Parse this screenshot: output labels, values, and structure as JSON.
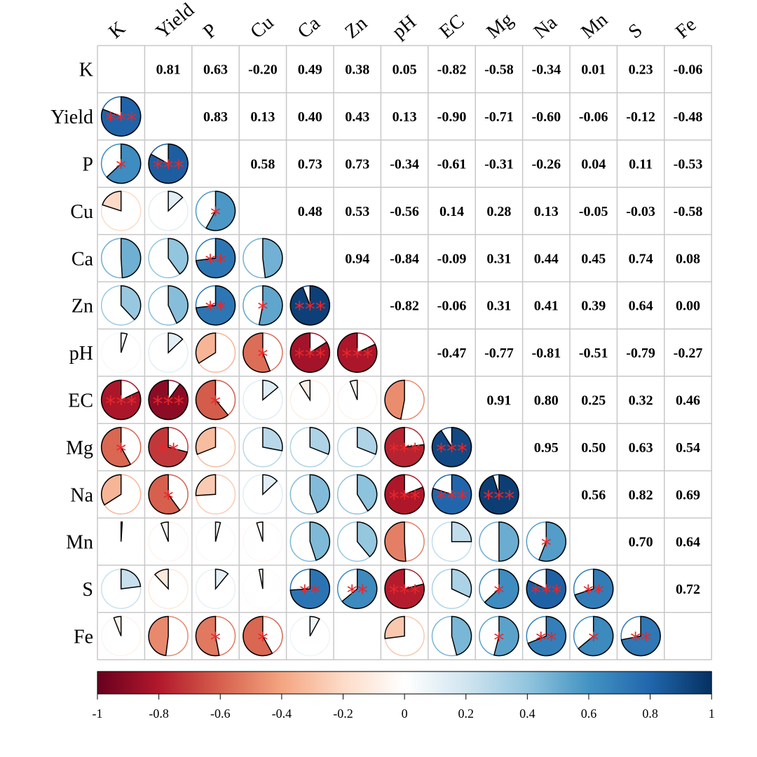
{
  "chart_data": {
    "type": "heatmap",
    "title": "",
    "variables": [
      "K",
      "Yield",
      "P",
      "Cu",
      "Ca",
      "Zn",
      "pH",
      "EC",
      "Mg",
      "Na",
      "Mn",
      "S",
      "Fe"
    ],
    "correlation_labels": [
      [
        "",
        "0.81",
        "0.63",
        "-0.20",
        "0.49",
        "0.38",
        "0.05",
        "-0.82",
        "-0.58",
        "-0.34",
        "0.01",
        "0.23",
        "-0.06"
      ],
      [
        "",
        "",
        "0.83",
        "0.13",
        "0.40",
        "0.43",
        "0.13",
        "-0.90",
        "-0.71",
        "-0.60",
        "-0.06",
        "-0.12",
        "-0.48"
      ],
      [
        "",
        "",
        "",
        "0.58",
        "0.73",
        "0.73",
        "-0.34",
        "-0.61",
        "-0.31",
        "-0.26",
        "0.04",
        "0.11",
        "-0.53"
      ],
      [
        "",
        "",
        "",
        "",
        "0.48",
        "0.53",
        "-0.56",
        "0.14",
        "0.28",
        "0.13",
        "-0.05",
        "-0.03",
        "-0.58"
      ],
      [
        "",
        "",
        "",
        "",
        "",
        "0.94",
        "-0.84",
        "-0.09",
        "0.31",
        "0.44",
        "0.45",
        "0.74",
        "0.08"
      ],
      [
        "",
        "",
        "",
        "",
        "",
        "",
        "-0.82",
        "-0.06",
        "0.31",
        "0.41",
        "0.39",
        "0.64",
        "0.00"
      ],
      [
        "",
        "",
        "",
        "",
        "",
        "",
        "",
        "-0.47",
        "-0.77",
        "-0.81",
        "-0.51",
        "-0.79",
        "-0.27"
      ],
      [
        "",
        "",
        "",
        "",
        "",
        "",
        "",
        "",
        "0.91",
        "0.80",
        "0.25",
        "0.32",
        "0.46"
      ],
      [
        "",
        "",
        "",
        "",
        "",
        "",
        "",
        "",
        "",
        "0.95",
        "0.50",
        "0.63",
        "0.54"
      ],
      [
        "",
        "",
        "",
        "",
        "",
        "",
        "",
        "",
        "",
        "",
        "0.56",
        "0.82",
        "0.69"
      ],
      [
        "",
        "",
        "",
        "",
        "",
        "",
        "",
        "",
        "",
        "",
        "",
        "0.70",
        "0.64"
      ],
      [
        "",
        "",
        "",
        "",
        "",
        "",
        "",
        "",
        "",
        "",
        "",
        "",
        "0.72"
      ],
      [
        "",
        "",
        "",
        "",
        "",
        "",
        "",
        "",
        "",
        "",
        "",
        "",
        ""
      ]
    ],
    "significance": [
      [
        "",
        "***",
        "*",
        "",
        "",
        "",
        "",
        "***",
        "*",
        "",
        "",
        "",
        ""
      ],
      [
        "***",
        "",
        "***",
        "",
        "",
        "",
        "",
        "***",
        "**",
        "*",
        "",
        "",
        ""
      ],
      [
        "*",
        "***",
        "",
        "*",
        "**",
        "**",
        "",
        "*",
        "",
        "",
        "",
        "",
        "*"
      ],
      [
        "",
        "",
        "*",
        "",
        "",
        "*",
        "*",
        "",
        "",
        "",
        "",
        "",
        "*"
      ],
      [
        "",
        "",
        "**",
        "",
        "",
        "***",
        "***",
        "",
        "",
        "",
        "",
        "**",
        ""
      ],
      [
        "",
        "",
        "**",
        "*",
        "***",
        "",
        "***",
        "",
        "",
        "",
        "",
        "**",
        ""
      ],
      [
        "",
        "",
        "",
        "*",
        "***",
        "***",
        "",
        "",
        "***",
        "***",
        "",
        "***",
        ""
      ],
      [
        "***",
        "***",
        "*",
        "",
        "",
        "",
        "",
        "",
        "***",
        "***",
        "",
        "",
        ""
      ],
      [
        "*",
        "**",
        "",
        "",
        "",
        "",
        "***",
        "***",
        "",
        "***",
        "",
        "*",
        "*"
      ],
      [
        "",
        "*",
        "",
        "",
        "",
        "",
        "***",
        "***",
        "***",
        "",
        "*",
        "***",
        "**"
      ],
      [
        "",
        "",
        "",
        "",
        "",
        "",
        "",
        "",
        "",
        "*",
        "",
        "**",
        "*"
      ],
      [
        "",
        "",
        "",
        "",
        "**",
        "**",
        "***",
        "",
        "*",
        "***",
        "**",
        "",
        "**"
      ],
      [
        "",
        "",
        "*",
        "*",
        "",
        "",
        "",
        "",
        "*",
        "**",
        "*",
        "**",
        ""
      ]
    ],
    "colorbar": {
      "min": -1,
      "max": 1,
      "ticks": [
        "-1",
        "-0.8",
        "-0.6",
        "-0.4",
        "-0.2",
        "0",
        "0.2",
        "0.4",
        "0.6",
        "0.8",
        "1"
      ],
      "colors": [
        "#67001f",
        "#b2182b",
        "#d6604d",
        "#f4a582",
        "#fddbc7",
        "#ffffff",
        "#d1e5f0",
        "#92c5de",
        "#4393c3",
        "#2166ac",
        "#053061"
      ]
    },
    "lower_triangle": "pie",
    "upper_triangle": "number"
  }
}
